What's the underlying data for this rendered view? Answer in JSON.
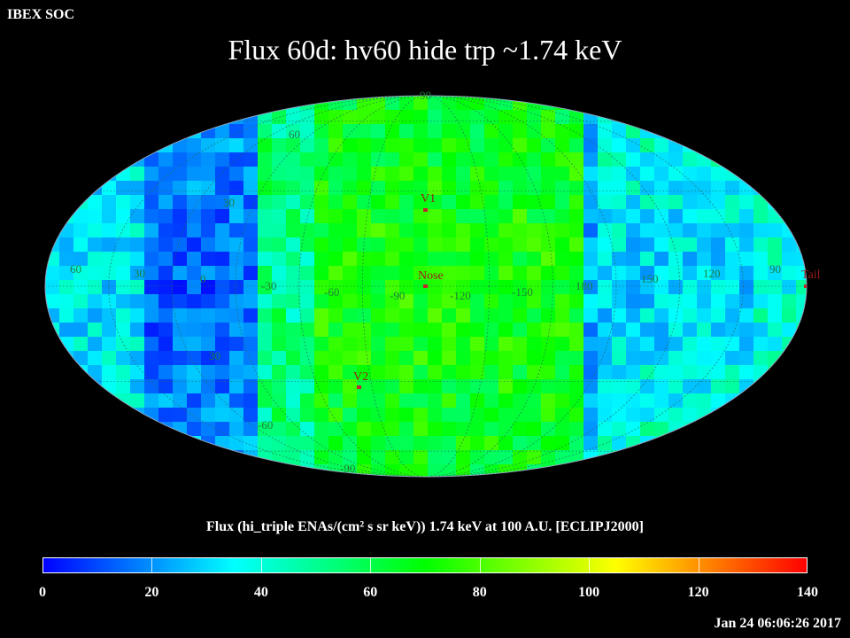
{
  "header": {
    "org": "IBEX SOC",
    "title": "Flux   60d: hv60 hide trp ~1.74 keV"
  },
  "map": {
    "projection": "mollweide",
    "grid_labels": {
      "lat_top": "90",
      "lat_60": "60",
      "lat_30": "30",
      "lat_neg30": "30",
      "lat_neg60": "-60",
      "lat_bottom": "-90",
      "lon_left_60": "60",
      "lon_30": "30",
      "lon_0": "0",
      "lon_neg30": "-30",
      "lon_neg60": "-60",
      "lon_neg90": "-90",
      "lon_neg120": "-120",
      "lon_neg150": "-150",
      "lon_180": "180",
      "lon_150": "150",
      "lon_120": "120",
      "lon_90": "90"
    },
    "markers": {
      "v1": "V1",
      "v2": "V2",
      "nose": "Nose",
      "tail": "Tail"
    },
    "colors": {
      "marker": "#c0262b",
      "grid_label": "#1f7f3a"
    }
  },
  "colorbar": {
    "caption": "Flux (hi_triple ENAs/(cm² s sr keV))  1.74 keV at 100 A.U. [ECLIPJ2000]",
    "min": 0,
    "max": 140,
    "ticks": [
      "0",
      "20",
      "40",
      "60",
      "80",
      "100",
      "120",
      "140"
    ],
    "colors": [
      "#0000ff",
      "#00ffff",
      "#00ff00",
      "#ffff00",
      "#ff0000"
    ]
  },
  "timestamp": "Jan 24 06:06:26 2017"
}
